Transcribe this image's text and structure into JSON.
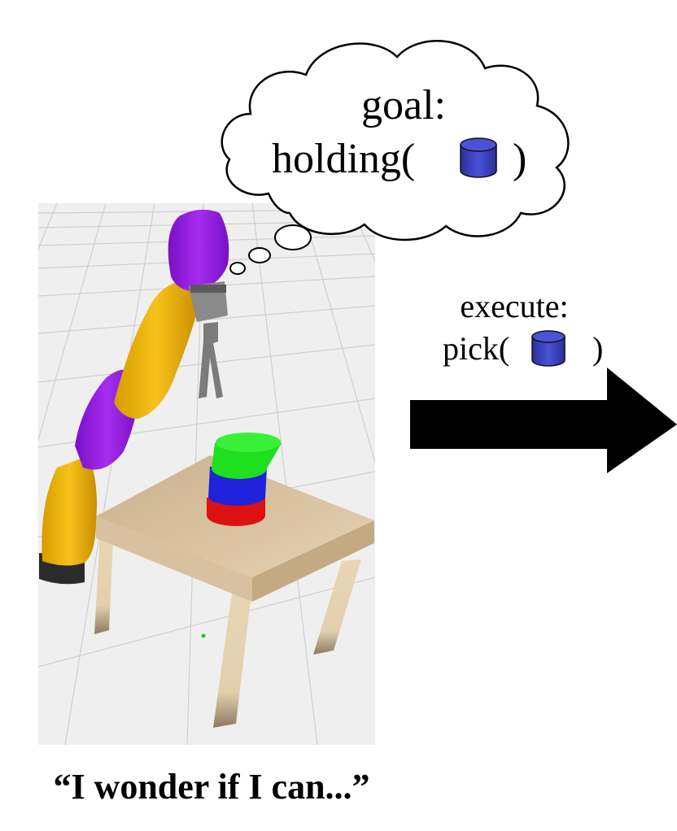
{
  "thought": {
    "goal_label": "goal:",
    "predicate_open": "holding(",
    "predicate_close": ")",
    "object_icon": "blue-cylinder-icon",
    "object_color": "#3a3fbf"
  },
  "action": {
    "execute_label": "execute:",
    "predicate_open": "pick(",
    "predicate_close": ")",
    "object_icon": "blue-cylinder-icon",
    "object_color": "#3a3fbf"
  },
  "scene": {
    "background": "#eeeeee",
    "robot_colors": {
      "links": "#f2b705",
      "joints": "#a020e8",
      "gripper": "#8a8a8a",
      "base": "#2b2b2b"
    },
    "table_color": "#d9bf9a",
    "stack_colors": [
      "#22dd22",
      "#2222dd",
      "#dd1111"
    ]
  },
  "caption": "“I wonder if I can...”"
}
